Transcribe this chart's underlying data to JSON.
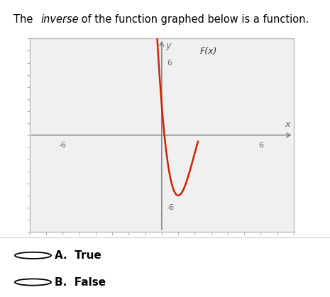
{
  "xlabel": "x",
  "ylabel": "y",
  "xlim": [
    -8,
    8
  ],
  "ylim": [
    -8,
    8
  ],
  "curve_color": "#cc2200",
  "curve_linewidth": 1.8,
  "label_Fx": "F(x)",
  "answer_A": "A.  True",
  "answer_B": "B.  False",
  "bg_color": "#ffffff",
  "plot_bg_color": "#f0f0f0",
  "axis_color": "#888888",
  "box_color": "#bbbbbb",
  "tick_color": "#aaaaaa",
  "label_color": "#666666",
  "curve_a": 5.5,
  "curve_b": -2.0,
  "curve_min_x": 1.0,
  "curve_min_y": -5.0,
  "curve_x_start": -0.7,
  "curve_x_end": 2.2
}
